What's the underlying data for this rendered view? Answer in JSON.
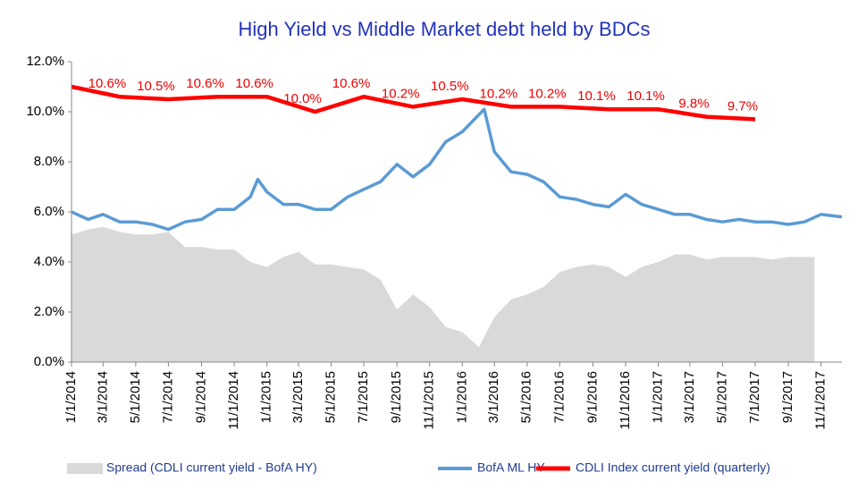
{
  "chart_data": {
    "type": "line",
    "title": "High Yield  vs  Middle Market debt held by BDCs",
    "xlim": [
      "1/1/2014",
      "12/10/2017"
    ],
    "xticks": [
      "1/1/2014",
      "3/1/2014",
      "5/1/2014",
      "7/1/2014",
      "9/1/2014",
      "11/1/2014",
      "1/1/2015",
      "3/1/2015",
      "5/1/2015",
      "7/1/2015",
      "9/1/2015",
      "11/1/2015",
      "1/1/2016",
      "3/1/2016",
      "5/1/2016",
      "7/1/2016",
      "9/1/2016",
      "11/1/2016",
      "1/1/2017",
      "3/1/2017",
      "5/1/2017",
      "7/1/2017",
      "9/1/2017",
      "11/1/2017"
    ],
    "ylim": [
      0,
      12
    ],
    "yticks": [
      {
        "value": 0,
        "label": "0.0%"
      },
      {
        "value": 2,
        "label": "2.0%"
      },
      {
        "value": 4,
        "label": "4.0%"
      },
      {
        "value": 6,
        "label": "6.0%"
      },
      {
        "value": 8,
        "label": "8.0%"
      },
      {
        "value": 10,
        "label": "10.0%"
      },
      {
        "value": 12,
        "label": "12.0%"
      }
    ],
    "series": [
      {
        "name": "Spread (CDLI current yield - BofA HY)",
        "color": "#d9d9d9",
        "kind": "area",
        "x": [
          "1/1/2014",
          "2/1/2014",
          "3/1/2014",
          "4/1/2014",
          "5/1/2014",
          "6/1/2014",
          "7/1/2014",
          "8/1/2014",
          "9/1/2014",
          "10/1/2014",
          "11/1/2014",
          "12/1/2014",
          "1/1/2015",
          "2/1/2015",
          "3/1/2015",
          "4/1/2015",
          "5/1/2015",
          "6/1/2015",
          "7/1/2015",
          "8/1/2015",
          "9/1/2015",
          "10/1/2015",
          "11/1/2015",
          "12/1/2015",
          "1/1/2016",
          "2/1/2016",
          "3/1/2016",
          "4/1/2016",
          "5/1/2016",
          "6/1/2016",
          "7/1/2016",
          "8/1/2016",
          "9/1/2016",
          "10/1/2016",
          "11/1/2016",
          "12/1/2016",
          "1/1/2017",
          "2/1/2017",
          "3/1/2017",
          "4/1/2017",
          "5/1/2017",
          "6/1/2017",
          "7/1/2017",
          "8/1/2017",
          "9/1/2017",
          "10/20/2017"
        ],
        "values": [
          5.1,
          5.3,
          5.4,
          5.2,
          5.1,
          5.1,
          5.2,
          4.6,
          4.6,
          4.5,
          4.5,
          4.0,
          3.8,
          4.2,
          4.4,
          3.9,
          3.9,
          3.8,
          3.7,
          3.3,
          2.1,
          2.7,
          2.2,
          1.4,
          1.2,
          0.6,
          1.8,
          2.5,
          2.7,
          3.0,
          3.6,
          3.8,
          3.9,
          3.8,
          3.4,
          3.8,
          4.0,
          4.3,
          4.3,
          4.1,
          4.2,
          4.2,
          4.2,
          4.1,
          4.2,
          4.2
        ]
      },
      {
        "name": "BofA ML HY",
        "color": "#5b9bd5",
        "kind": "line",
        "x": [
          "1/1/2014",
          "2/1/2014",
          "3/1/2014",
          "4/1/2014",
          "5/1/2014",
          "6/1/2014",
          "7/1/2014",
          "8/1/2014",
          "9/1/2014",
          "10/1/2014",
          "11/1/2014",
          "12/1/2014",
          "12/15/2014",
          "1/1/2015",
          "2/1/2015",
          "3/1/2015",
          "4/1/2015",
          "5/1/2015",
          "6/1/2015",
          "7/1/2015",
          "8/1/2015",
          "9/1/2015",
          "10/1/2015",
          "11/1/2015",
          "12/1/2015",
          "1/1/2016",
          "2/11/2016",
          "3/1/2016",
          "4/1/2016",
          "5/1/2016",
          "6/1/2016",
          "7/1/2016",
          "8/1/2016",
          "9/1/2016",
          "10/1/2016",
          "11/1/2016",
          "12/1/2016",
          "1/1/2017",
          "2/1/2017",
          "3/1/2017",
          "4/1/2017",
          "5/1/2017",
          "6/1/2017",
          "7/1/2017",
          "8/1/2017",
          "9/1/2017",
          "10/1/2017",
          "11/1/2017",
          "12/10/2017"
        ],
        "values": [
          6.0,
          5.7,
          5.9,
          5.6,
          5.6,
          5.5,
          5.3,
          5.6,
          5.7,
          6.1,
          6.1,
          6.6,
          7.3,
          6.8,
          6.3,
          6.3,
          6.1,
          6.1,
          6.6,
          6.9,
          7.2,
          7.9,
          7.4,
          7.9,
          8.8,
          9.2,
          10.1,
          8.4,
          7.6,
          7.5,
          7.2,
          6.6,
          6.5,
          6.3,
          6.2,
          6.7,
          6.3,
          6.1,
          5.9,
          5.9,
          5.7,
          5.6,
          5.7,
          5.6,
          5.6,
          5.5,
          5.6,
          5.9,
          5.8
        ]
      },
      {
        "name": "CDLI Index current yield (quarterly)",
        "color": "#ff0000",
        "kind": "line",
        "x": [
          "1/1/2014",
          "4/1/2014",
          "7/1/2014",
          "10/1/2014",
          "1/1/2015",
          "4/1/2015",
          "7/1/2015",
          "10/1/2015",
          "1/1/2016",
          "4/1/2016",
          "7/1/2016",
          "10/1/2016",
          "1/1/2017",
          "4/1/2017",
          "7/1/2017"
        ],
        "values": [
          11.0,
          10.6,
          10.5,
          10.6,
          10.6,
          10.0,
          10.6,
          10.2,
          10.5,
          10.2,
          10.2,
          10.1,
          10.1,
          9.8,
          9.7
        ],
        "value_labels": [
          null,
          "10.6%",
          "10.5%",
          "10.6%",
          "10.6%",
          "10.0%",
          "10.6%",
          "10.2%",
          "10.5%",
          "10.2%",
          "10.2%",
          "10.1%",
          "10.1%",
          "9.8%",
          "9.7%"
        ]
      }
    ]
  }
}
